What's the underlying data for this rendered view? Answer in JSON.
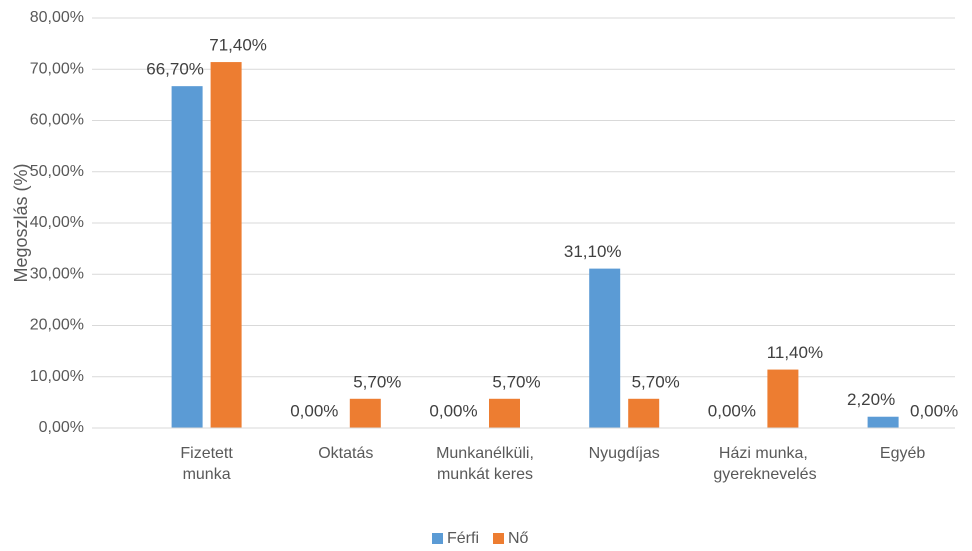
{
  "chart_data": {
    "type": "bar",
    "y_label": "Megoszlás (%)",
    "categories": [
      "Fizetett munka",
      "Oktatás",
      "Munkanélküli, munkát keres",
      "Nyugdíjas",
      "Házi munka, gyereknevelés",
      "Egyéb"
    ],
    "series": [
      {
        "name": "Férfi",
        "color": "#5b9bd5",
        "values": [
          66.7,
          0,
          0,
          31.1,
          0,
          2.2
        ],
        "value_labels": [
          "66,70%",
          "0,00%",
          "0,00%",
          "31,10%",
          "0,00%",
          "2,20%"
        ]
      },
      {
        "name": "Nő",
        "color": "#ed7d31",
        "values": [
          71.4,
          5.7,
          5.7,
          5.7,
          11.4,
          0
        ],
        "value_labels": [
          "71,40%",
          "5,70%",
          "5,70%",
          "5,70%",
          "11,40%",
          "0,00%"
        ]
      }
    ],
    "ylim": [
      0,
      80
    ],
    "yticks": [
      {
        "value": 0,
        "label": "0,00%"
      },
      {
        "value": 10,
        "label": "10,00%"
      },
      {
        "value": 20,
        "label": "20,00%"
      },
      {
        "value": 30,
        "label": "30,00%"
      },
      {
        "value": 40,
        "label": "40,00%"
      },
      {
        "value": 50,
        "label": "50,00%"
      },
      {
        "value": 60,
        "label": "60,00%"
      },
      {
        "value": 70,
        "label": "70,00%"
      },
      {
        "value": 80,
        "label": "80,00%"
      }
    ],
    "grid": true,
    "legend": "bottom"
  }
}
